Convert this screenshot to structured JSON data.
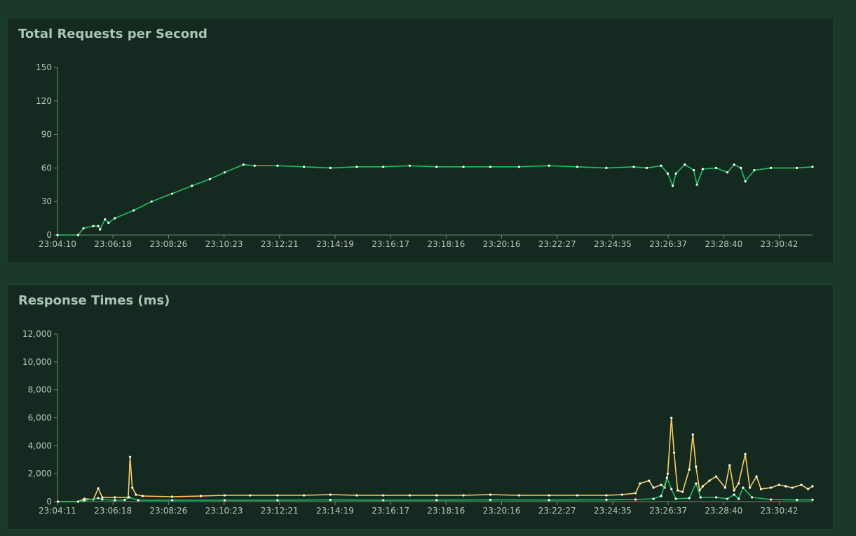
{
  "colors": {
    "page_background": "#1a392b",
    "panel_background": "#142a20",
    "series_green": "#16c45c",
    "series_yellow": "#ffcd5a",
    "marker": "#ffffff"
  },
  "chart_data": [
    {
      "type": "line",
      "title": "Total Requests per Second",
      "ylim": [
        0,
        150
      ],
      "y_ticks": [
        "0",
        "30",
        "60",
        "90",
        "120",
        "150"
      ],
      "y_tick_values": [
        0,
        30,
        60,
        90,
        120,
        150
      ],
      "x_ticks": [
        "23:04:10",
        "23:06:18",
        "23:08:26",
        "23:10:23",
        "23:12:21",
        "23:14:19",
        "23:16:17",
        "23:18:16",
        "23:20:16",
        "23:22:27",
        "23:24:35",
        "23:26:37",
        "23:28:40",
        "23:30:42"
      ],
      "grid": false,
      "series": [
        {
          "color": "#16c45c",
          "x": [
            "23:04:10",
            "23:04:56",
            "23:05:08",
            "23:05:30",
            "23:05:41",
            "23:05:45",
            "23:05:56",
            "23:06:04",
            "23:06:18",
            "23:07:00",
            "23:07:40",
            "23:08:26",
            "23:09:10",
            "23:09:50",
            "23:10:23",
            "23:11:05",
            "23:11:30",
            "23:12:21",
            "23:13:20",
            "23:14:19",
            "23:15:18",
            "23:16:17",
            "23:17:16",
            "23:18:16",
            "23:19:16",
            "23:20:16",
            "23:21:20",
            "23:22:27",
            "23:23:30",
            "23:24:35",
            "23:25:36",
            "23:26:05",
            "23:26:37",
            "23:26:52",
            "23:27:03",
            "23:27:10",
            "23:27:30",
            "23:27:50",
            "23:27:57",
            "23:28:10",
            "23:28:40",
            "23:29:05",
            "23:29:20",
            "23:29:35",
            "23:29:45",
            "23:30:05",
            "23:30:42",
            "23:31:40",
            "23:32:15"
          ],
          "values": [
            0,
            0,
            6,
            8,
            8,
            5,
            14,
            11,
            15,
            22,
            30,
            37,
            44,
            50,
            56,
            63,
            62,
            62,
            61,
            60,
            61,
            61,
            62,
            61,
            61,
            61,
            61,
            62,
            61,
            60,
            61,
            60,
            62,
            55,
            44,
            55,
            63,
            58,
            45,
            59,
            60,
            56,
            63,
            60,
            48,
            58,
            60,
            60,
            61
          ]
        }
      ]
    },
    {
      "type": "line",
      "title": "Response Times (ms)",
      "ylim": [
        0,
        12000
      ],
      "y_ticks": [
        "0",
        "2,000",
        "4,000",
        "6,000",
        "8,000",
        "10,000",
        "12,000"
      ],
      "y_tick_values": [
        0,
        2000,
        4000,
        6000,
        8000,
        10000,
        12000
      ],
      "x_ticks": [
        "23:04:11",
        "23:06:18",
        "23:08:26",
        "23:10:23",
        "23:12:21",
        "23:14:19",
        "23:16:17",
        "23:18:16",
        "23:20:16",
        "23:22:27",
        "23:24:35",
        "23:26:37",
        "23:28:40",
        "23:30:42"
      ],
      "grid": false,
      "series": [
        {
          "color": "#ffcd5a",
          "x": [
            "23:04:11",
            "23:04:56",
            "23:05:10",
            "23:05:30",
            "23:05:41",
            "23:05:50",
            "23:06:18",
            "23:06:48",
            "23:06:52",
            "23:06:57",
            "23:07:05",
            "23:07:20",
            "23:08:26",
            "23:09:30",
            "23:10:23",
            "23:11:20",
            "23:12:21",
            "23:13:20",
            "23:14:19",
            "23:15:18",
            "23:16:17",
            "23:17:16",
            "23:18:16",
            "23:19:16",
            "23:20:16",
            "23:21:20",
            "23:22:27",
            "23:23:30",
            "23:24:35",
            "23:25:10",
            "23:25:40",
            "23:25:50",
            "23:26:10",
            "23:26:20",
            "23:26:37",
            "23:26:45",
            "23:26:52",
            "23:27:00",
            "23:27:06",
            "23:27:14",
            "23:27:25",
            "23:27:40",
            "23:27:48",
            "23:27:55",
            "23:28:03",
            "23:28:10",
            "23:28:25",
            "23:28:40",
            "23:29:00",
            "23:29:10",
            "23:29:20",
            "23:29:30",
            "23:29:45",
            "23:29:55",
            "23:30:10",
            "23:30:20",
            "23:30:42",
            "23:31:00",
            "23:31:15",
            "23:31:30",
            "23:31:50",
            "23:32:05",
            "23:32:15"
          ],
          "values": [
            0,
            0,
            200,
            150,
            950,
            300,
            300,
            300,
            3200,
            1000,
            500,
            400,
            350,
            400,
            450,
            450,
            450,
            450,
            500,
            450,
            450,
            450,
            450,
            450,
            500,
            450,
            450,
            450,
            450,
            500,
            600,
            1300,
            1500,
            1000,
            1200,
            1000,
            2000,
            6000,
            3500,
            800,
            700,
            2300,
            4800,
            2500,
            800,
            1100,
            1500,
            1800,
            1000,
            2600,
            800,
            1300,
            3400,
            1000,
            1800,
            900,
            1000,
            1200,
            1100,
            1000,
            1200,
            900,
            1100
          ]
        },
        {
          "color": "#16c45c",
          "x": [
            "23:04:11",
            "23:04:56",
            "23:05:10",
            "23:05:41",
            "23:05:50",
            "23:06:18",
            "23:06:40",
            "23:06:50",
            "23:07:10",
            "23:08:26",
            "23:10:23",
            "23:12:21",
            "23:14:19",
            "23:16:17",
            "23:18:16",
            "23:20:16",
            "23:22:27",
            "23:24:35",
            "23:25:40",
            "23:26:20",
            "23:26:37",
            "23:26:50",
            "23:27:00",
            "23:27:10",
            "23:27:40",
            "23:27:55",
            "23:28:05",
            "23:28:40",
            "23:29:05",
            "23:29:20",
            "23:29:30",
            "23:29:40",
            "23:30:00",
            "23:30:42",
            "23:31:40",
            "23:32:15"
          ],
          "values": [
            0,
            0,
            80,
            250,
            150,
            100,
            120,
            300,
            100,
            100,
            100,
            100,
            120,
            100,
            110,
            120,
            110,
            130,
            150,
            200,
            400,
            1700,
            900,
            200,
            250,
            1300,
            300,
            300,
            200,
            500,
            200,
            1000,
            300,
            150,
            120,
            130
          ]
        }
      ]
    }
  ]
}
